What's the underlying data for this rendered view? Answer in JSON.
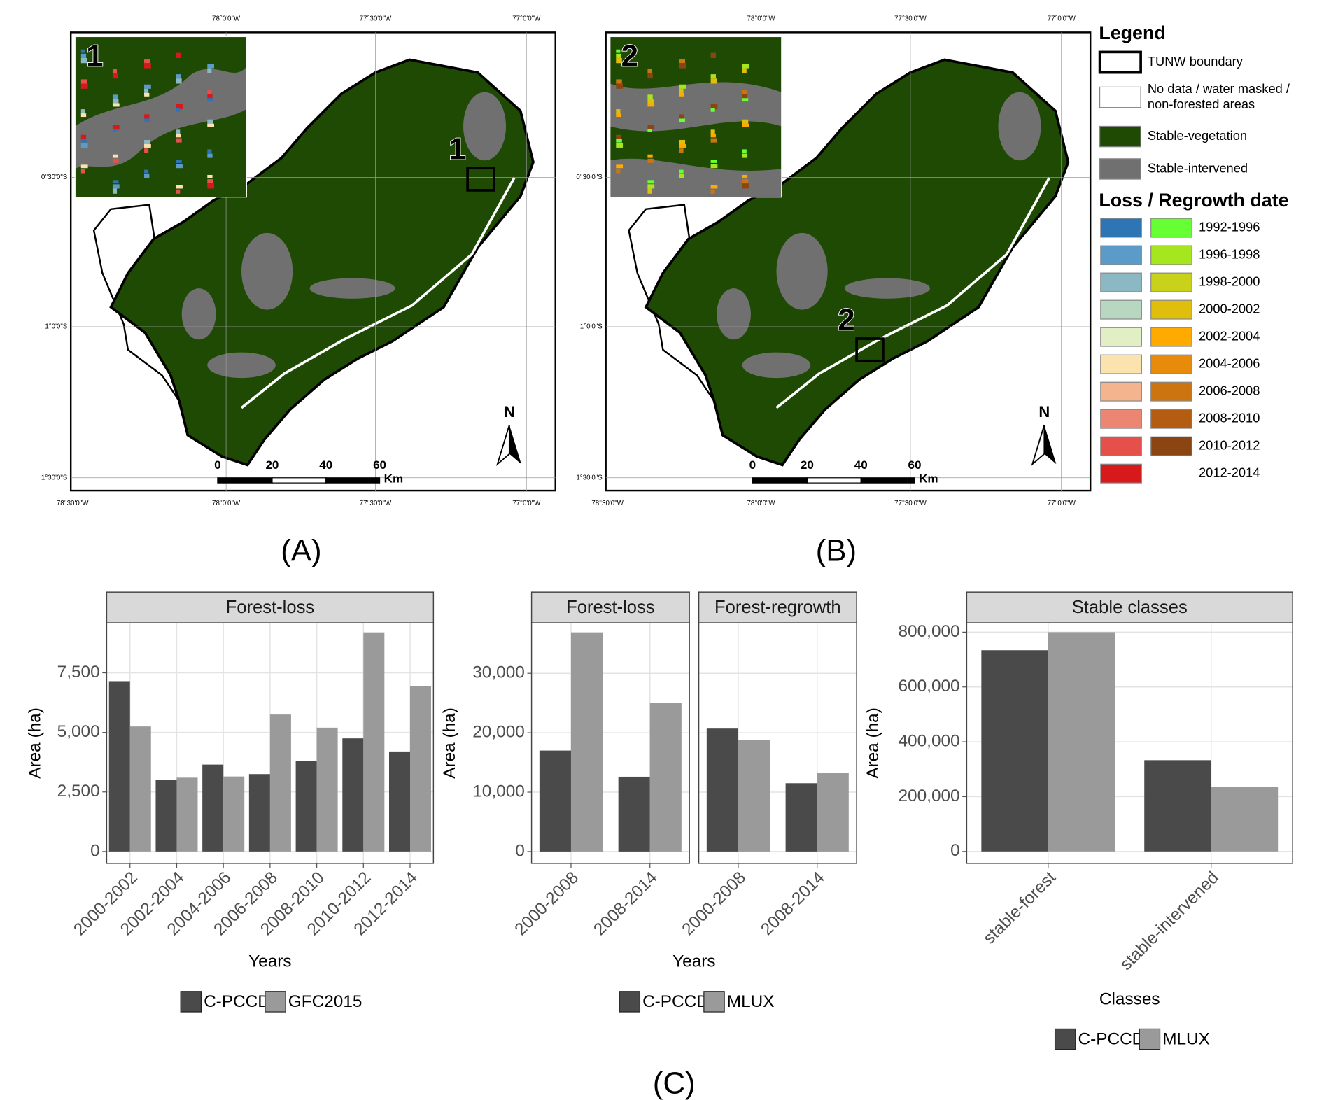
{
  "maps": [
    {
      "label": "(A)",
      "inset_label": "1",
      "box_label": "1",
      "lon_top": [
        "78°0'0\"W",
        "77°30'0\"W",
        "77°0'0\"W"
      ],
      "lat": [
        "0°30'0\"S",
        "1°0'0\"S",
        "1°30'0\"S"
      ],
      "lon_bottom": [
        "78°30'0\"W",
        "78°0'0\"W",
        "77°30'0\"W",
        "77°0'0\"W"
      ],
      "scale": [
        "0",
        "20",
        "40",
        "60"
      ],
      "scale_unit": "Km",
      "north": "N"
    },
    {
      "label": "(B)",
      "inset_label": "2",
      "box_label": "2",
      "lon_top": [
        "78°0'0\"W",
        "77°30'0\"W",
        "77°0'0\"W"
      ],
      "lat": [
        "0°30'0\"S",
        "1°0'0\"S",
        "1°30'0\"S"
      ],
      "lon_bottom": [
        "78°30'0\"W",
        "78°0'0\"W",
        "77°30'0\"W",
        "77°0'0\"W"
      ],
      "scale": [
        "0",
        "20",
        "40",
        "60"
      ],
      "scale_unit": "Km",
      "north": "N"
    }
  ],
  "legend": {
    "title": "Legend",
    "items": [
      {
        "lines": [
          "TUNW boundary"
        ],
        "fill": "#ffffff",
        "stroke": "#000000"
      },
      {
        "lines": [
          "No data / water masked /",
          "non-forested areas"
        ],
        "fill": "#ffffff",
        "stroke": "#888888"
      },
      {
        "lines": [
          "Stable-vegetation"
        ],
        "fill": "#1f4a04",
        "stroke": "#888888"
      },
      {
        "lines": [
          "Stable-intervened"
        ],
        "fill": "#707070",
        "stroke": "#888888"
      }
    ],
    "date_title": "Loss / Regrowth date",
    "dates": [
      {
        "label": "1992-1996",
        "loss": "#2e75b6",
        "regrowth": "#66ff33"
      },
      {
        "label": "1996-1998",
        "loss": "#5b9bc8",
        "regrowth": "#a6e61e"
      },
      {
        "label": "1998-2000",
        "loss": "#8cb8c4",
        "regrowth": "#c8d21a"
      },
      {
        "label": "2000-2002",
        "loss": "#b7d7c0",
        "regrowth": "#e0be0c"
      },
      {
        "label": "2002-2004",
        "loss": "#e2efc4",
        "regrowth": "#ffaa00"
      },
      {
        "label": "2004-2006",
        "loss": "#fce3ae",
        "regrowth": "#e88a0a"
      },
      {
        "label": "2006-2008",
        "loss": "#f3b48e",
        "regrowth": "#cc7410"
      },
      {
        "label": "2008-2010",
        "loss": "#ec8672",
        "regrowth": "#b35c12"
      },
      {
        "label": "2010-2012",
        "loss": "#e5504a",
        "regrowth": "#8b4513"
      },
      {
        "label": "2012-2014",
        "loss": "#d7191c"
      }
    ]
  },
  "panel_label": "(C)",
  "chart_data": [
    {
      "type": "bar",
      "ylabel": "Area (ha)",
      "xlabel": "Years",
      "ylim": [
        -500,
        9600
      ],
      "yticks": [
        0,
        {
          "value": 2500,
          "label": "2,500"
        },
        {
          "value": 5000,
          "label": "5,000"
        },
        {
          "value": 7500,
          "label": "7,500"
        }
      ],
      "grid": true,
      "legend": "bottom",
      "facets": [
        {
          "title": "Forest-loss",
          "categories": [
            "2000-2002",
            "2002-2004",
            "2004-2006",
            "2006-2008",
            "2008-2010",
            "2010-2012",
            "2012-2014"
          ],
          "series": [
            {
              "name": "C-PCCD",
              "color": "#4a4a4a",
              "values": [
                7150,
                3000,
                3650,
                3250,
                3800,
                4750,
                4200
              ]
            },
            {
              "name": "GFC2015",
              "color": "#9a9a9a",
              "values": [
                5250,
                3100,
                3150,
                5750,
                5200,
                9200,
                6950
              ]
            }
          ]
        }
      ]
    },
    {
      "type": "bar",
      "ylabel": "Area (ha)",
      "xlabel": "Years",
      "ylim": [
        -2000,
        38500
      ],
      "yticks": [
        0,
        {
          "value": 10000,
          "label": "10,000"
        },
        {
          "value": 20000,
          "label": "20,000"
        },
        {
          "value": 30000,
          "label": "30,000"
        }
      ],
      "grid": true,
      "legend": "bottom",
      "facets": [
        {
          "title": "Forest-loss",
          "categories": [
            "2000-2008",
            "2008-2014"
          ],
          "series": [
            {
              "name": "C-PCCD",
              "color": "#4a4a4a",
              "values": [
                17000,
                12600
              ]
            },
            {
              "name": "MLUX",
              "color": "#9a9a9a",
              "values": [
                36900,
                25000
              ]
            }
          ]
        },
        {
          "title": "Forest-regrowth",
          "categories": [
            "2000-2008",
            "2008-2014"
          ],
          "series": [
            {
              "name": "C-PCCD",
              "color": "#4a4a4a",
              "values": [
                20700,
                11500
              ]
            },
            {
              "name": "MLUX",
              "color": "#9a9a9a",
              "values": [
                18800,
                13200
              ]
            }
          ]
        }
      ]
    },
    {
      "type": "bar",
      "ylabel": "Area (ha)",
      "xlabel": "Classes",
      "ylim": [
        -43600,
        834000
      ],
      "yticks": [
        0,
        {
          "value": 200000,
          "label": "200,000"
        },
        {
          "value": 400000,
          "label": "400,000"
        },
        {
          "value": 600000,
          "label": "600,000"
        },
        {
          "value": 800000,
          "label": "800,000"
        }
      ],
      "grid": true,
      "legend": "bottom",
      "facets": [
        {
          "title": "Stable classes",
          "categories": [
            "stable-forest",
            "stable-intervened"
          ],
          "series": [
            {
              "name": "C-PCCD",
              "color": "#4a4a4a",
              "values": [
                734000,
                333000
              ]
            },
            {
              "name": "MLUX",
              "color": "#9a9a9a",
              "values": [
                800000,
                236000
              ]
            }
          ]
        }
      ]
    }
  ]
}
